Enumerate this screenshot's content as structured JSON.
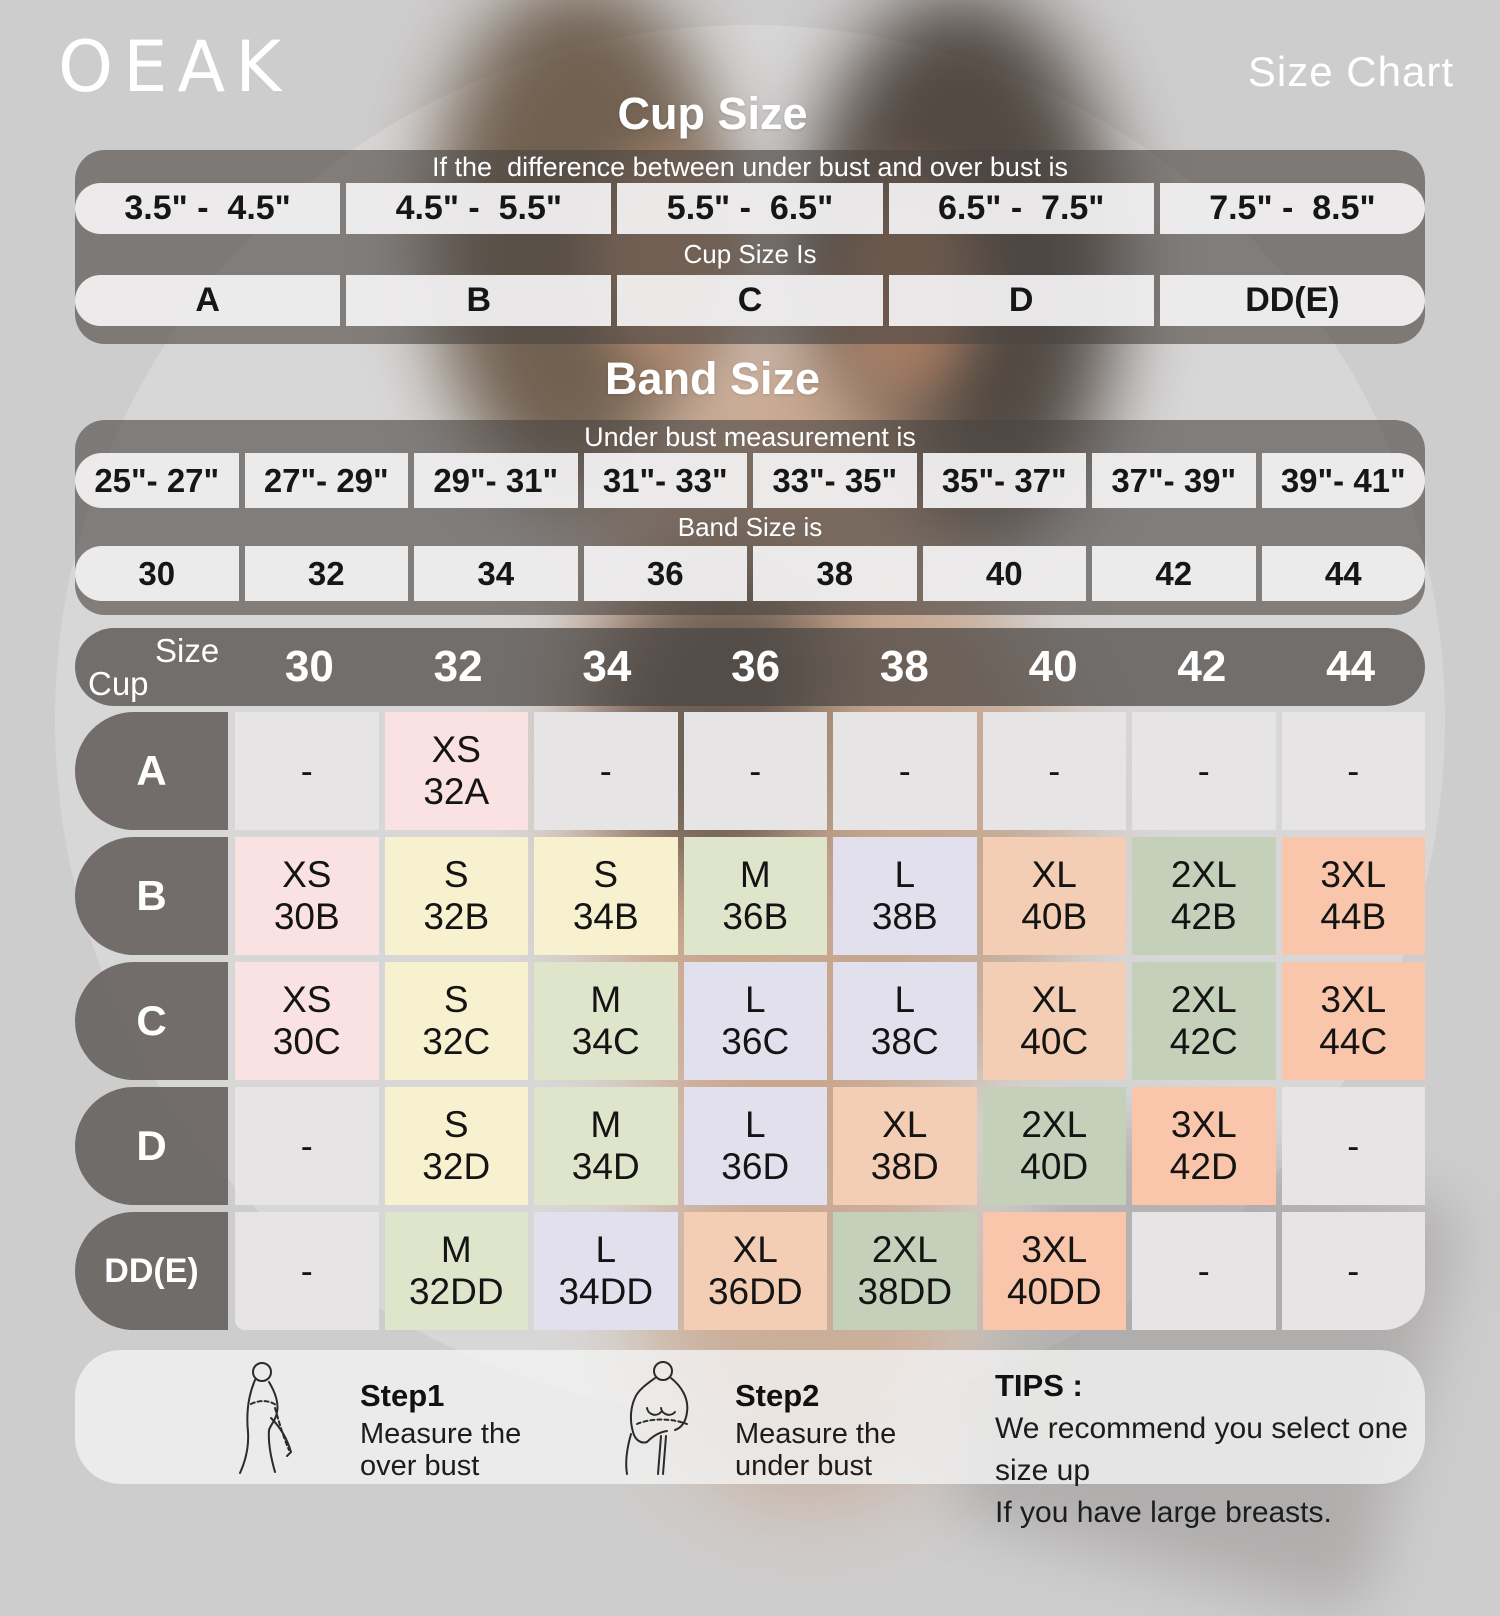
{
  "brand": "OEAK",
  "page_title": "Size Chart",
  "cup_size_table": {
    "heading": "Cup Size",
    "condition_label": "If the  difference between under bust and over bust is",
    "ranges": [
      "3.5\" -  4.5\"",
      "4.5\" -  5.5\"",
      "5.5\" -  6.5\"",
      "6.5\" -  7.5\"",
      "7.5\" -  8.5\""
    ],
    "result_label": "Cup Size Is",
    "cups": [
      "A",
      "B",
      "C",
      "D",
      "DD(E)"
    ]
  },
  "band_size_table": {
    "heading": "Band Size",
    "condition_label": "Under bust measurement is",
    "ranges": [
      "25\"- 27\"",
      "27\"- 29\"",
      "29\"- 31\"",
      "31\"- 33\"",
      "33\"- 35\"",
      "35\"- 37\"",
      "37\"- 39\"",
      "39\"- 41\""
    ],
    "result_label": "Band Size is",
    "bands": [
      "30",
      "32",
      "34",
      "36",
      "38",
      "40",
      "42",
      "44"
    ]
  },
  "size_matrix": {
    "corner_top_label": "Size",
    "corner_bottom_label": "Cup",
    "band_columns": [
      "30",
      "32",
      "34",
      "36",
      "38",
      "40",
      "42",
      "44"
    ],
    "empty_cell_text": "-",
    "rows": [
      {
        "cup": "A",
        "cells": [
          null,
          {
            "size": "XS",
            "code": "32A",
            "color_key": "xs"
          },
          null,
          null,
          null,
          null,
          null,
          null
        ]
      },
      {
        "cup": "B",
        "cells": [
          {
            "size": "XS",
            "code": "30B",
            "color_key": "xs"
          },
          {
            "size": "S",
            "code": "32B",
            "color_key": "s"
          },
          {
            "size": "S",
            "code": "34B",
            "color_key": "s"
          },
          {
            "size": "M",
            "code": "36B",
            "color_key": "m"
          },
          {
            "size": "L",
            "code": "38B",
            "color_key": "l"
          },
          {
            "size": "XL",
            "code": "40B",
            "color_key": "xl"
          },
          {
            "size": "2XL",
            "code": "42B",
            "color_key": "xxl"
          },
          {
            "size": "3XL",
            "code": "44B",
            "color_key": "xxxl"
          }
        ]
      },
      {
        "cup": "C",
        "cells": [
          {
            "size": "XS",
            "code": "30C",
            "color_key": "xs"
          },
          {
            "size": "S",
            "code": "32C",
            "color_key": "s"
          },
          {
            "size": "M",
            "code": "34C",
            "color_key": "m"
          },
          {
            "size": "L",
            "code": "36C",
            "color_key": "l"
          },
          {
            "size": "L",
            "code": "38C",
            "color_key": "l"
          },
          {
            "size": "XL",
            "code": "40C",
            "color_key": "xl"
          },
          {
            "size": "2XL",
            "code": "42C",
            "color_key": "xxl"
          },
          {
            "size": "3XL",
            "code": "44C",
            "color_key": "xxxl"
          }
        ]
      },
      {
        "cup": "D",
        "cells": [
          null,
          {
            "size": "S",
            "code": "32D",
            "color_key": "s"
          },
          {
            "size": "M",
            "code": "34D",
            "color_key": "m"
          },
          {
            "size": "L",
            "code": "36D",
            "color_key": "l"
          },
          {
            "size": "XL",
            "code": "38D",
            "color_key": "xl"
          },
          {
            "size": "2XL",
            "code": "40D",
            "color_key": "xxl"
          },
          {
            "size": "3XL",
            "code": "42D",
            "color_key": "xxxl"
          },
          null
        ]
      },
      {
        "cup": "DD(E)",
        "cells": [
          null,
          {
            "size": "M",
            "code": "32DD",
            "color_key": "m"
          },
          {
            "size": "L",
            "code": "34DD",
            "color_key": "l"
          },
          {
            "size": "XL",
            "code": "36DD",
            "color_key": "xl"
          },
          {
            "size": "2XL",
            "code": "38DD",
            "color_key": "xxl"
          },
          {
            "size": "3XL",
            "code": "40DD",
            "color_key": "xxxl"
          },
          null,
          null
        ]
      }
    ]
  },
  "size_colors": {
    "xs": "#f9e2e1",
    "s": "#f7f1d0",
    "m": "#dfe5cb",
    "l": "#e3e0ee",
    "xl": "#f3ceb4",
    "xxl": "#c5d0ba",
    "xxxl": "#f9c6ab",
    "empty": "#e6e4e5"
  },
  "footer": {
    "step1": {
      "title": "Step1",
      "line1": "Measure the",
      "line2": "over bust"
    },
    "step2": {
      "title": "Step2",
      "line1": "Measure the",
      "line2": "under bust"
    },
    "tips": {
      "title": "TIPS :",
      "line1": "We recommend you select one size up",
      "line2": "If you have large breasts."
    }
  }
}
